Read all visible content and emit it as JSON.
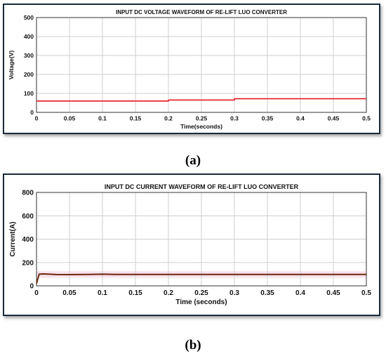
{
  "captions": {
    "a": "(a)",
    "b": "(b)"
  },
  "colors": {
    "voltage_line": "#e8161f",
    "current_line": "#6b2a0c",
    "grid": "#cfcfcf",
    "frame": "#1a2a3a"
  },
  "chart_data": [
    {
      "type": "line",
      "title": "INPUT DC VOLTAGE WAVEFORM OF RE-LIFT LUO CONVERTER",
      "xlabel": "Time(seconds)",
      "ylabel": "Voltage(V)",
      "xlim": [
        0,
        0.5
      ],
      "ylim": [
        0,
        500
      ],
      "xticks": [
        0,
        0.05,
        0.1,
        0.15,
        0.2,
        0.25,
        0.3,
        0.35,
        0.4,
        0.45,
        0.5
      ],
      "xtick_labels": [
        "0",
        "0.05",
        "0.1",
        "0.15",
        "0.2",
        "0.25",
        "0.3",
        "0.35",
        "0.4",
        "0.45",
        "0.5"
      ],
      "yticks": [
        0,
        100,
        200,
        300,
        400,
        500
      ],
      "ytick_labels": [
        "0",
        "100",
        "200",
        "300",
        "400",
        "500"
      ],
      "grid": true,
      "series": [
        {
          "x": [
            0,
            0.2,
            0.2,
            0.3,
            0.3,
            0.5
          ],
          "y": [
            60,
            60,
            65,
            65,
            72,
            72
          ]
        }
      ]
    },
    {
      "type": "line",
      "title": "INPUT DC CURRENT WAVEFORM OF RE-LIFT LUO CONVERTER",
      "xlabel": "Time (seconds)",
      "ylabel": "Current(A)",
      "xlim": [
        0,
        0.5
      ],
      "ylim": [
        0,
        800
      ],
      "xticks": [
        0,
        0.05,
        0.1,
        0.15,
        0.2,
        0.25,
        0.3,
        0.35,
        0.4,
        0.45,
        0.5
      ],
      "xtick_labels": [
        "0",
        "0.05",
        "0.1",
        "0.15",
        "0.2",
        "0.25",
        "0.3",
        "0.35",
        "0.4",
        "0.45",
        "0.5"
      ],
      "yticks": [
        0,
        200,
        400,
        600,
        800
      ],
      "ytick_labels": [
        "0",
        "200",
        "400",
        "600",
        "800"
      ],
      "grid": true,
      "series": [
        {
          "x": [
            0,
            0.002,
            0.004,
            0.01,
            0.02,
            0.03,
            0.05,
            0.08,
            0.1,
            0.12,
            0.2,
            0.3,
            0.4,
            0.5
          ],
          "y": [
            20,
            60,
            100,
            102,
            100,
            97,
            96,
            98,
            100,
            98,
            98,
            98,
            98,
            98
          ]
        }
      ]
    }
  ]
}
